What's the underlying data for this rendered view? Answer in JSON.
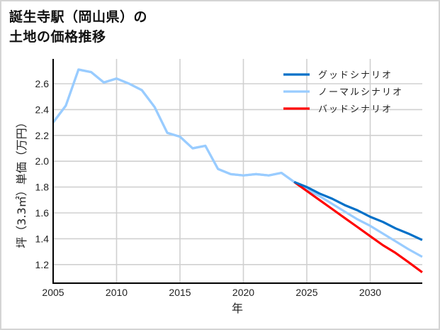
{
  "title": {
    "line1": "誕生寺駅（岡山県）の",
    "line2": "土地の価格推移"
  },
  "colors": {
    "good": "#0070c8",
    "normal": "#99ccff",
    "bad": "#ff0000",
    "grid": "#d0d0d0",
    "axis": "#000000"
  },
  "chart_data": {
    "type": "line",
    "title": "誕生寺駅（岡山県）の土地の価格推移",
    "xlabel": "年",
    "ylabel": "坪（3.3㎡）単価（万円）",
    "xlim": [
      2005,
      2034.1
    ],
    "ylim": [
      1.06,
      2.8
    ],
    "x_ticks": [
      2005,
      2010,
      2015,
      2020,
      2025,
      2030
    ],
    "y_ticks": [
      1.2,
      1.4,
      1.6,
      1.8,
      2.0,
      2.2,
      2.4,
      2.6
    ],
    "grid": true,
    "legend_position": "upper right",
    "series": [
      {
        "name": "グッドシナリオ",
        "color": "#0070c8",
        "x": [
          2024,
          2025,
          2026,
          2027,
          2028,
          2029,
          2030,
          2031,
          2032,
          2033,
          2034.1
        ],
        "values": [
          1.84,
          1.8,
          1.75,
          1.71,
          1.66,
          1.62,
          1.57,
          1.53,
          1.48,
          1.44,
          1.39
        ]
      },
      {
        "name": "ノーマルシナリオ",
        "color": "#99ccff",
        "x": [
          2005,
          2006,
          2007,
          2008,
          2009,
          2010,
          2011,
          2012,
          2013,
          2014,
          2015,
          2016,
          2017,
          2018,
          2019,
          2020,
          2021,
          2022,
          2023,
          2024,
          2025,
          2026,
          2027,
          2028,
          2029,
          2030,
          2031,
          2032,
          2033,
          2034.1
        ],
        "values": [
          2.3,
          2.43,
          2.71,
          2.69,
          2.61,
          2.64,
          2.6,
          2.55,
          2.42,
          2.22,
          2.19,
          2.1,
          2.12,
          1.94,
          1.9,
          1.89,
          1.9,
          1.89,
          1.91,
          1.84,
          1.78,
          1.73,
          1.67,
          1.61,
          1.55,
          1.5,
          1.44,
          1.38,
          1.32,
          1.26
        ]
      },
      {
        "name": "バッドシナリオ",
        "color": "#ff0000",
        "x": [
          2024,
          2025,
          2026,
          2027,
          2028,
          2029,
          2030,
          2031,
          2032,
          2033,
          2034.1
        ],
        "values": [
          1.84,
          1.77,
          1.7,
          1.63,
          1.56,
          1.49,
          1.42,
          1.35,
          1.29,
          1.22,
          1.14
        ]
      }
    ]
  },
  "legend": [
    {
      "label": "グッドシナリオ",
      "color": "#0070c8"
    },
    {
      "label": "ノーマルシナリオ",
      "color": "#99ccff"
    },
    {
      "label": "バッドシナリオ",
      "color": "#ff0000"
    }
  ]
}
